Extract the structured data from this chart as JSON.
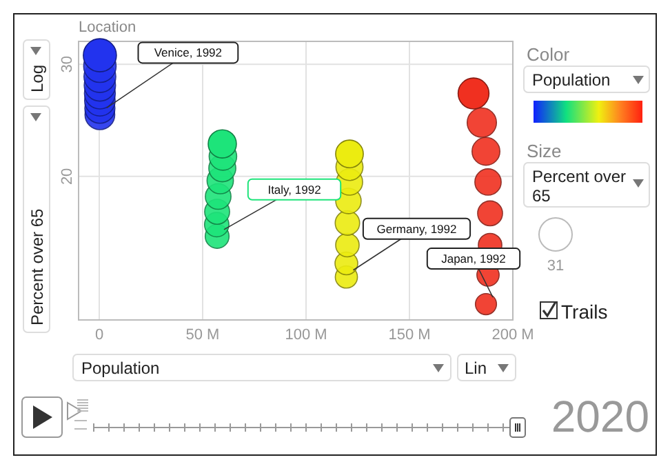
{
  "chart_data": {
    "type": "bubble",
    "title": "Location",
    "xlabel": "Population",
    "ylabel": "Percent over 65",
    "xlim": [
      -10,
      200
    ],
    "xticks": [
      0,
      {
        "value": 50,
        "label": "50 M"
      },
      {
        "value": 100,
        "label": "100 M"
      },
      {
        "value": 150,
        "label": "150 M"
      },
      {
        "value": 200,
        "label": "200 M"
      }
    ],
    "ylim": [
      11.9,
      32.6
    ],
    "yticks": [
      20,
      30
    ],
    "log": "y",
    "grid": true,
    "size_legend": [
      31
    ],
    "series": [
      {
        "color": "#2233ee",
        "x": [
          0.3,
          0.3,
          0.3,
          0.3,
          0.3,
          0.3,
          0.3,
          0.3
        ],
        "values": [
          25.0,
          25.6,
          26.3,
          27.0,
          27.8,
          28.7,
          29.8,
          31.0
        ],
        "sizes": [
          25.0,
          25.6,
          26.3,
          27.0,
          27.8,
          28.7,
          29.8,
          31.0
        ]
      },
      {
        "color": "#1de47a",
        "x": [
          57.0,
          56.8,
          57.0,
          57.5,
          58.5,
          59.5,
          59.8,
          59.5
        ],
        "values": [
          16.1,
          16.8,
          17.6,
          18.6,
          19.7,
          20.6,
          21.5,
          22.5
        ],
        "sizes": [
          16.1,
          16.8,
          17.6,
          18.6,
          19.7,
          20.6,
          21.5,
          22.5
        ]
      },
      {
        "color": "#ecec10",
        "x": [
          119.5,
          119.5,
          120,
          120,
          120.5,
          121,
          121,
          121
        ],
        "values": [
          13.9,
          14.6,
          15.6,
          16.9,
          18.3,
          19.6,
          20.7,
          21.7
        ],
        "sizes": [
          13.9,
          14.6,
          15.6,
          16.9,
          18.3,
          19.6,
          20.7,
          21.7
        ]
      },
      {
        "color": "#f03020",
        "x": [
          187,
          188,
          189,
          189,
          188,
          187,
          185,
          181
        ],
        "values": [
          12.6,
          14.0,
          15.6,
          17.5,
          19.6,
          21.9,
          24.3,
          27.0
        ],
        "sizes": [
          12.6,
          14.0,
          15.6,
          17.5,
          19.6,
          21.9,
          24.3,
          27.0
        ]
      }
    ],
    "annotations": [
      {
        "text": "Venice, 1992",
        "x": 0.3,
        "y": 25.0
      },
      {
        "text": "Italy, 1992",
        "x": 57.0,
        "y": 16.1
      },
      {
        "text": "Germany, 1992",
        "x": 119.5,
        "y": 13.9
      },
      {
        "text": "Japan, 1992",
        "x": 187,
        "y": 12.6
      },
      "Log",
      "Lin",
      "Color",
      "Population",
      "Size",
      "Percent over 65",
      "Trails",
      "2020"
    ]
  }
}
